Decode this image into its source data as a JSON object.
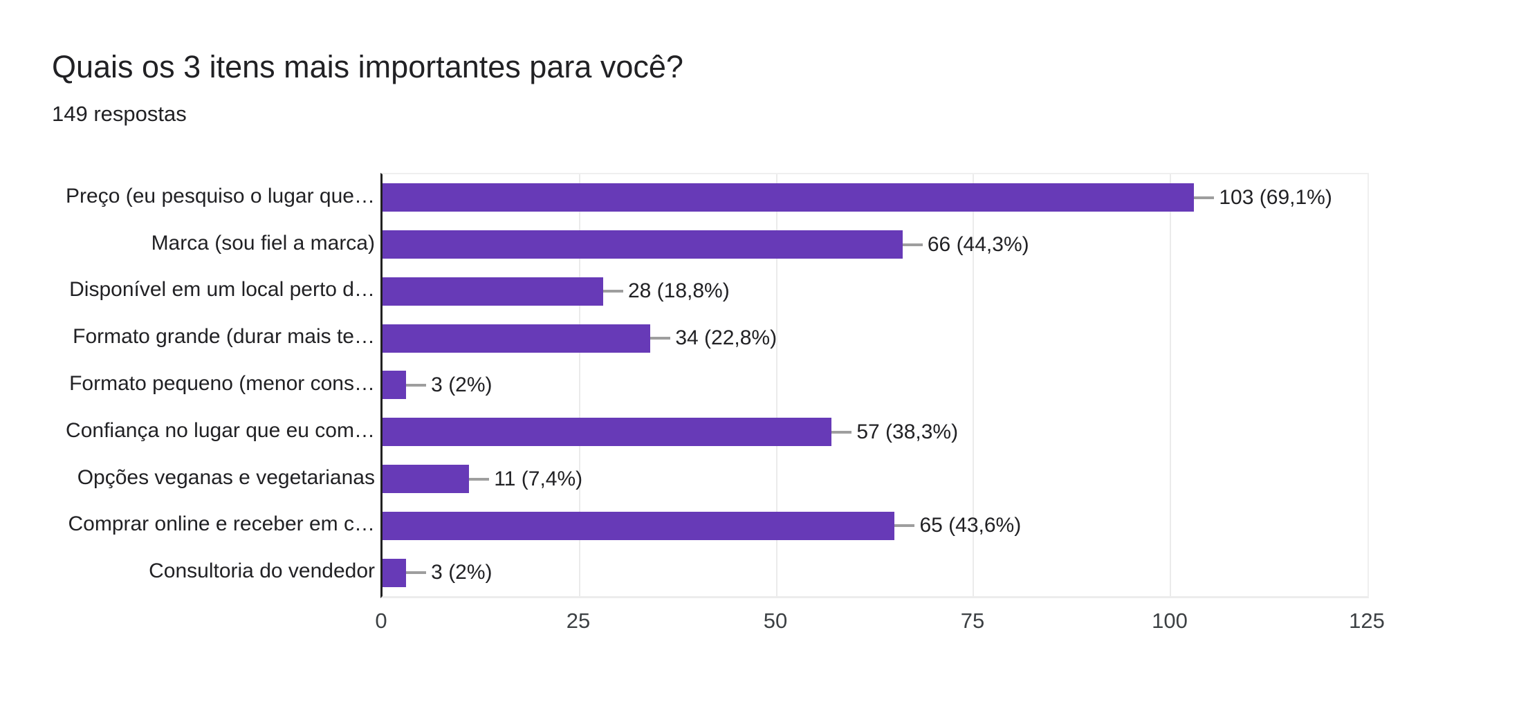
{
  "header": {
    "title": "Quais os 3 itens mais importantes para você?",
    "subtitle": "149 respostas"
  },
  "chart_data": {
    "type": "bar",
    "orientation": "horizontal",
    "title": "Quais os 3 itens mais importantes para você?",
    "subtitle": "149 respostas",
    "categories": [
      "Preço (eu pesquiso o lugar que…",
      "Marca (sou fiel a marca)",
      "Disponível em um local perto d…",
      "Formato grande (durar mais te…",
      "Formato pequeno (menor cons…",
      "Confiança no lugar que eu com…",
      "Opções veganas e vegetarianas",
      "Comprar online e receber em c…",
      "Consultoria do vendedor"
    ],
    "values": [
      103,
      66,
      28,
      34,
      3,
      57,
      11,
      65,
      3
    ],
    "value_labels": [
      "103 (69,1%)",
      "66 (44,3%)",
      "28 (18,8%)",
      "34 (22,8%)",
      "3 (2%)",
      "57 (38,3%)",
      "11 (7,4%)",
      "65 (43,6%)",
      "3 (2%)"
    ],
    "xlim": [
      0,
      125
    ],
    "xticks": [
      0,
      25,
      50,
      75,
      100,
      125
    ],
    "grid": true,
    "legend_position": "none"
  },
  "colors": {
    "bar": "#673ab7",
    "axis_line": "#212121",
    "gridline": "#ebebeb",
    "leader_line": "#9e9e9e",
    "text": "#212124",
    "tick_text": "#3c4043",
    "background": "#ffffff"
  }
}
